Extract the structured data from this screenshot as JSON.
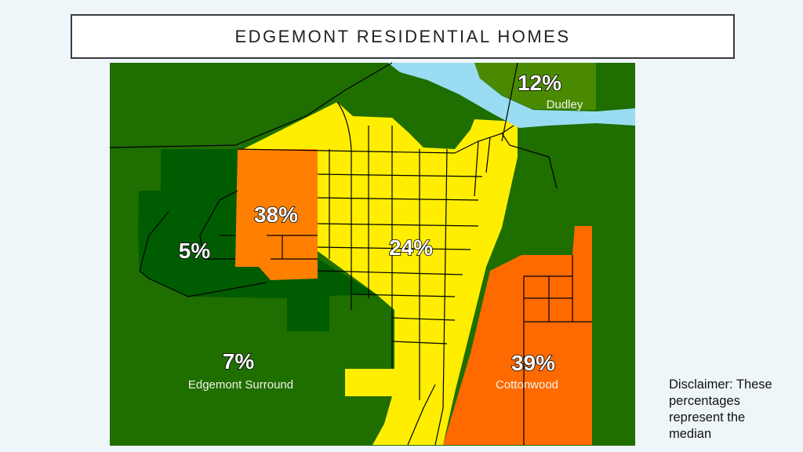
{
  "title": "EDGEMONT RESIDENTIAL HOMES",
  "disclaimer": "Disclaimer: These percentages represent the median",
  "map": {
    "regions": [
      {
        "name": "Dudley",
        "percent": "12%",
        "color": "#4a8a00"
      },
      {
        "name": "",
        "percent": "38%",
        "color": "#ff8000"
      },
      {
        "name": "",
        "percent": "5%",
        "color": "#005c00"
      },
      {
        "name": "",
        "percent": "24%",
        "color": "#ffee00"
      },
      {
        "name": "Edgemont Surround",
        "percent": "7%",
        "color": "#1f6e00"
      },
      {
        "name": "Cottonwood",
        "percent": "39%",
        "color": "#ff6a00"
      }
    ],
    "river_color": "#9adcf2"
  }
}
